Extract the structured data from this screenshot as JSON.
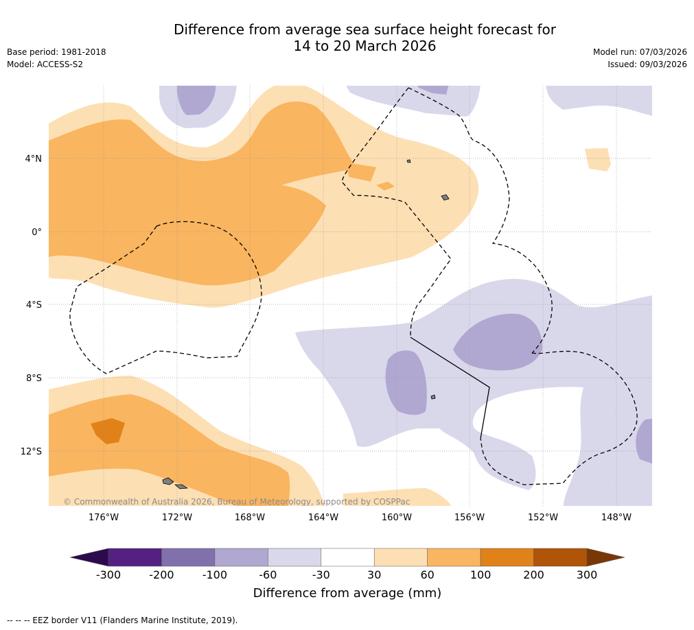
{
  "header": {
    "title_line1": "Difference from average sea surface height forecast for",
    "title_line2": "14 to 20 March 2026",
    "base_period": "Base period: 1981-2018",
    "model": "Model: ACCESS-S2",
    "model_run": "Model run: 07/03/2026",
    "issued": "Issued: 09/03/2026"
  },
  "map": {
    "lat_labels": [
      "4°N",
      "0°",
      "4°S",
      "8°S",
      "12°S"
    ],
    "lon_labels": [
      "176°W",
      "172°W",
      "168°W",
      "164°W",
      "160°W",
      "156°W",
      "152°W",
      "148°W"
    ],
    "copyright": "© Commonwealth of Australia 2026, Bureau of Meteorology, supported by COSPPac"
  },
  "colorbar": {
    "title": "Difference from average (mm)",
    "ticks": [
      "-300",
      "-200",
      "-100",
      "-60",
      "-30",
      "30",
      "60",
      "100",
      "200",
      "300"
    ],
    "colors": [
      "#2d0a4e",
      "#542183",
      "#8071ad",
      "#b1a8d1",
      "#d9d8eb",
      "#ffffff",
      "#fddfb4",
      "#f9b55f",
      "#e0811a",
      "#b05407",
      "#7a3706"
    ]
  },
  "legend": {
    "footnote": "-- -- -- EEZ border V11 (Flanders Marine Institute, 2019)."
  }
}
